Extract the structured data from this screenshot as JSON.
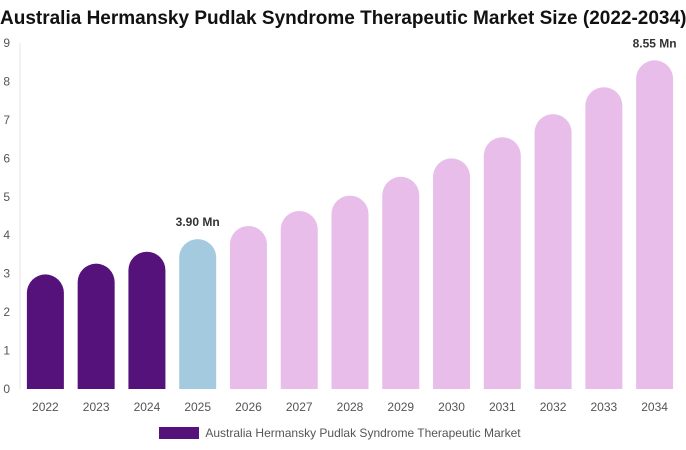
{
  "chart_data": {
    "type": "bar",
    "title": "Australia Hermansky Pudlak Syndrome Therapeutic Market Size (2022-2034)",
    "xlabel": "",
    "ylabel": "",
    "categories": [
      "2022",
      "2023",
      "2024",
      "2025",
      "2026",
      "2027",
      "2028",
      "2029",
      "2030",
      "2031",
      "2032",
      "2033",
      "2034"
    ],
    "series": [
      {
        "name": "Australia Hermansky Pudlak Syndrome Therapeutic Market",
        "values": [
          2.98,
          3.26,
          3.57,
          3.9,
          4.24,
          4.63,
          5.03,
          5.52,
          6.0,
          6.55,
          7.15,
          7.85,
          8.55
        ]
      }
    ],
    "ylim": [
      0,
      9
    ],
    "yticks": [
      0,
      1,
      2,
      3,
      4,
      5,
      6,
      7,
      8,
      9
    ],
    "grid": false,
    "legend_position": "bottom",
    "annotations": [
      {
        "category": "2025",
        "text": "3.90 Mn"
      },
      {
        "category": "2034",
        "text": "8.55 Mn"
      }
    ],
    "colors": {
      "historical": "#54127a",
      "base_year": "#a4cadf",
      "forecast": "#e8bdea",
      "legend": "#54127a"
    },
    "bar_color_groups": [
      "historical",
      "historical",
      "historical",
      "base_year",
      "forecast",
      "forecast",
      "forecast",
      "forecast",
      "forecast",
      "forecast",
      "forecast",
      "forecast",
      "forecast"
    ]
  }
}
